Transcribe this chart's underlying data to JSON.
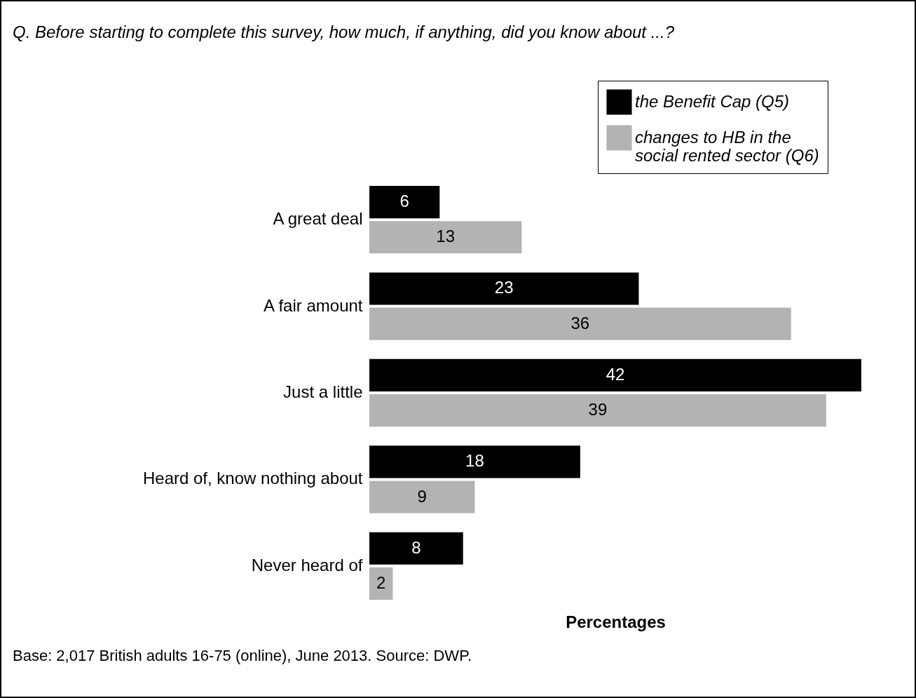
{
  "chart_data": {
    "type": "bar",
    "orientation": "horizontal",
    "title": "Q.     Before starting to complete this survey, how much, if anything, did you know about ...?",
    "xlabel": "Percentages",
    "categories": [
      "A great deal",
      "A fair amount",
      "Just a little",
      "Heard of, know nothing about",
      "Never heard of"
    ],
    "series": [
      {
        "name": "the Benefit Cap (Q5)",
        "color": "#000000",
        "values": [
          6,
          23,
          42,
          18,
          8
        ]
      },
      {
        "name": "changes to HB in the social rented sector (Q6)",
        "color": "#b3b3b3",
        "values": [
          13,
          36,
          39,
          9,
          2
        ]
      }
    ],
    "data_labels": true,
    "legend": "top right",
    "grid": false,
    "annotations": [
      "Base: 2,017 British adults 16-75 (online), June 2013. Source: DWP."
    ]
  }
}
